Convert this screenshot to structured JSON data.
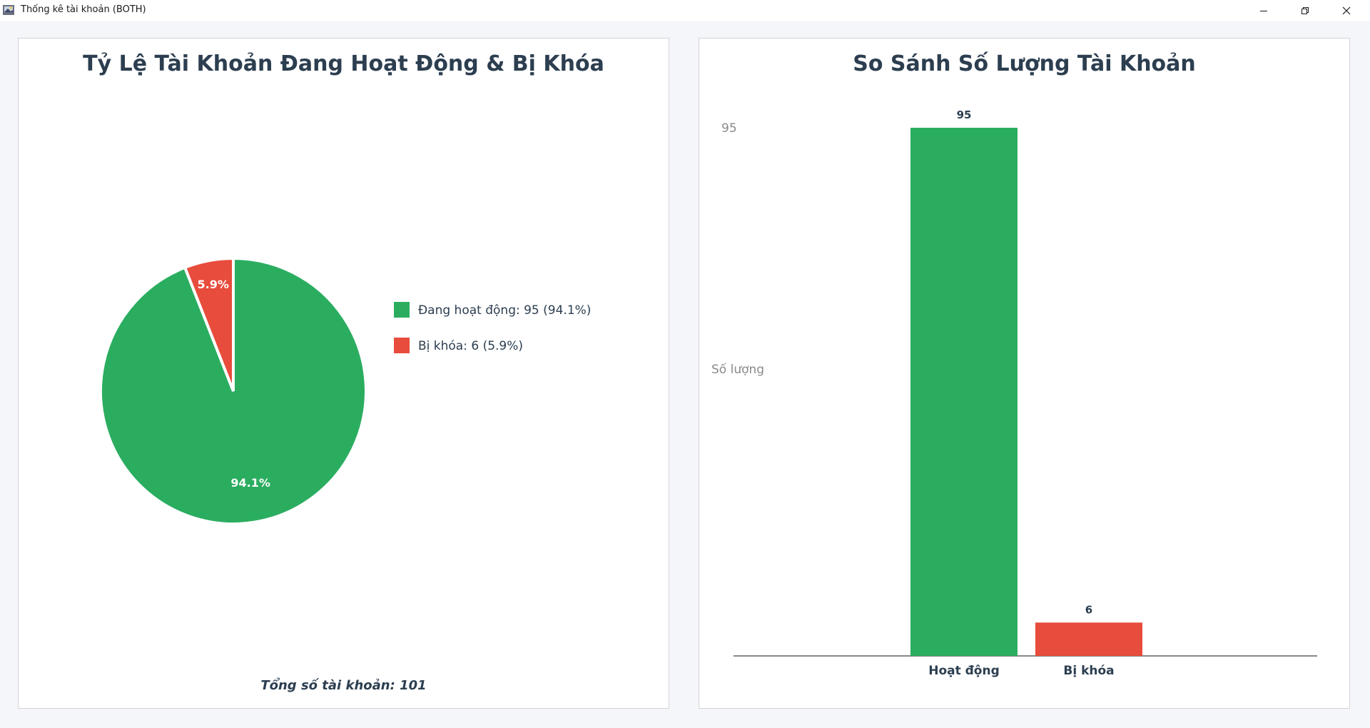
{
  "window": {
    "title": "Thống kê tài khoản (BOTH)"
  },
  "colors": {
    "active": "#2bad60",
    "locked": "#e74c3c",
    "title": "#2c3e50",
    "axis": "#888888",
    "axis_label": "#8a8a8a"
  },
  "pie_panel": {
    "title": "Tỷ Lệ Tài Khoản Đang Hoạt Động & Bị Khóa",
    "total_label": "Tổng số tài khoản: 101"
  },
  "bar_panel": {
    "title": "So Sánh Số Lượng Tài Khoản"
  },
  "chart_data": [
    {
      "type": "pie",
      "title": "Tỷ Lệ Tài Khoản Đang Hoạt Động & Bị Khóa",
      "slices": [
        {
          "key": "active",
          "value": 95,
          "percent_label": "94.1%",
          "legend": "Đang hoạt động: 95 (94.1%)",
          "color": "#2bad60"
        },
        {
          "key": "locked",
          "value": 6,
          "percent_label": "5.9%",
          "legend": "Bị khóa: 6 (5.9%)",
          "color": "#e74c3c"
        }
      ],
      "legend_placement": "right"
    },
    {
      "type": "bar",
      "title": "So Sánh Số Lượng Tài Khoản",
      "categories": [
        "Hoạt động",
        "Bị khóa"
      ],
      "values": [
        95,
        6
      ],
      "value_labels": [
        "95",
        "6"
      ],
      "colors": [
        "#2bad60",
        "#e74c3c"
      ],
      "ylabel": "Số lượng",
      "ytick_labels": [
        "95"
      ],
      "ylim": [
        0,
        95
      ],
      "grid": false
    }
  ]
}
